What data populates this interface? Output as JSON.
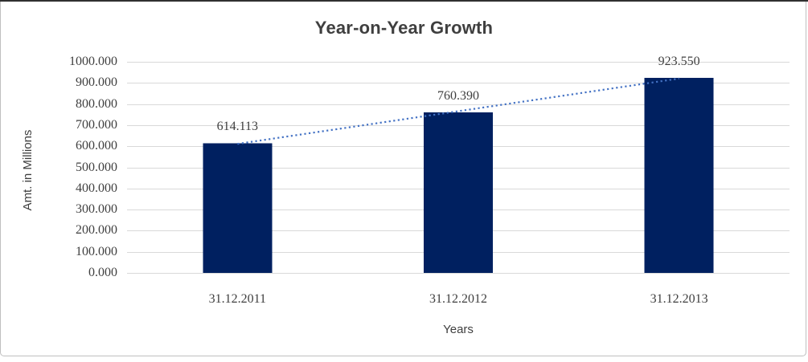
{
  "chart_data": {
    "type": "bar",
    "title": "Year-on-Year Growth",
    "categories": [
      "31.12.2011",
      "31.12.2012",
      "31.12.2013"
    ],
    "values": [
      614.113,
      760.39,
      923.55
    ],
    "data_labels": [
      "614.113",
      "760.390",
      "923.550"
    ],
    "xlabel": "Years",
    "ylabel": "Amt. in Millions",
    "ylim": [
      0,
      1000
    ],
    "ytick_step": 100,
    "ytick_labels": [
      "0.000",
      "100.000",
      "200.000",
      "300.000",
      "400.000",
      "500.000",
      "600.000",
      "700.000",
      "800.000",
      "900.000",
      "1000.000"
    ],
    "grid": true,
    "legend": "none",
    "trendline": {
      "type": "linear",
      "style": "dotted"
    },
    "colors": {
      "bar": "#002060",
      "trendline": "#4472c4",
      "gridline": "#d9d9d9",
      "text": "#3f3f3f",
      "border": "#bfbfbf",
      "top_edge": "#303030"
    }
  }
}
